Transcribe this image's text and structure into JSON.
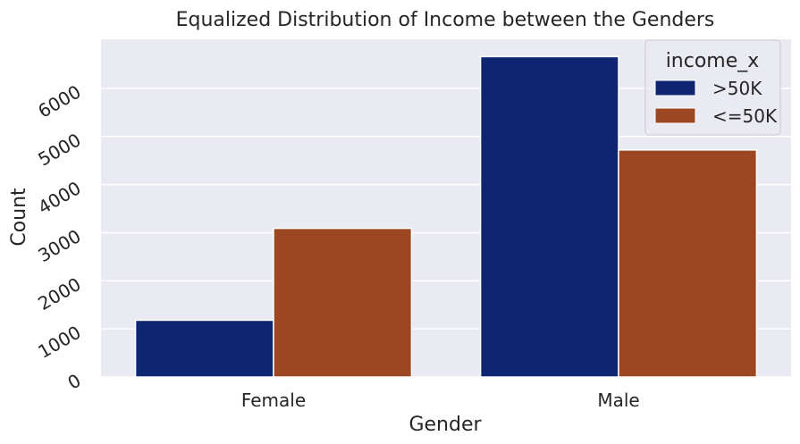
{
  "chart_data": {
    "type": "bar",
    "title": "Equalized Distribution of Income between the Genders",
    "xlabel": "Gender",
    "ylabel": "Count",
    "categories": [
      "Female",
      "Male"
    ],
    "series": [
      {
        "name": ">50K",
        "values": [
          1180,
          6660
        ],
        "color": "#0e2572"
      },
      {
        "name": "<=50K",
        "values": [
          3090,
          4720
        ],
        "color": "#9c4721"
      }
    ],
    "ylim": [
      0,
      7020
    ],
    "yticks": [
      0,
      1000,
      2000,
      3000,
      4000,
      5000,
      6000
    ],
    "ytick_labels": [
      "0",
      "1000",
      "2000",
      "3000",
      "4000",
      "5000",
      "6000"
    ],
    "legend": {
      "title": "income_x",
      "placement": "top-right"
    },
    "grid": true,
    "background": "#eaeaf2"
  }
}
